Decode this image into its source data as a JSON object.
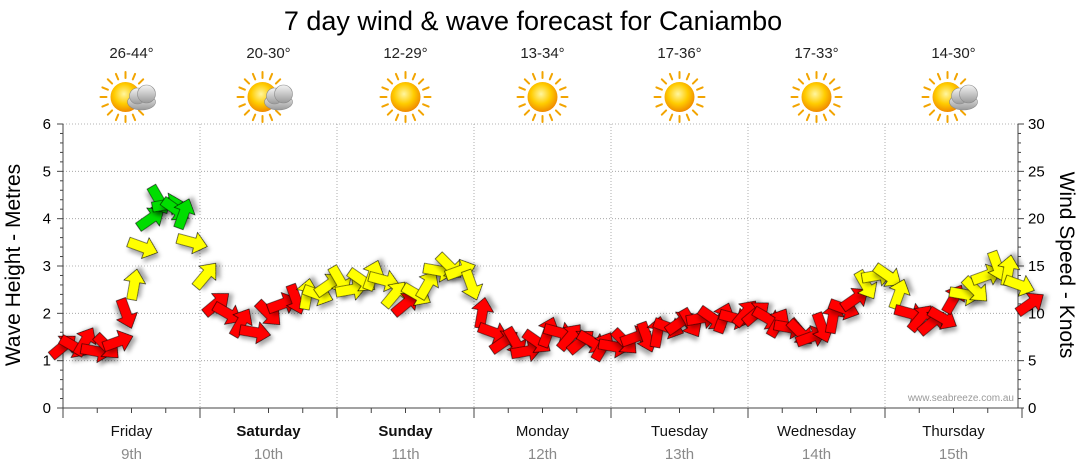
{
  "chart_data": {
    "type": "line",
    "title": "7 day wind & wave forecast for Caniambo",
    "ylabel_left": "Wave Height - Metres",
    "ylabel_right": "Wind Speed - Knots",
    "ylim_left": [
      0,
      6
    ],
    "ylim_right": [
      0,
      30
    ],
    "yticks_left": [
      "0",
      "1",
      "2",
      "3",
      "4",
      "5",
      "6"
    ],
    "yticks_right": [
      "0",
      "5",
      "10",
      "15",
      "20",
      "25",
      "30"
    ],
    "credit": "www.seabreeze.com.au",
    "days": [
      {
        "name": "Friday",
        "date": "9th",
        "temp": "26-44°",
        "icon": "partly-cloudy-icon",
        "bold": false
      },
      {
        "name": "Saturday",
        "date": "10th",
        "temp": "20-30°",
        "icon": "partly-cloudy-icon",
        "bold": true
      },
      {
        "name": "Sunday",
        "date": "11th",
        "temp": "12-29°",
        "icon": "sun-icon",
        "bold": true
      },
      {
        "name": "Monday",
        "date": "12th",
        "temp": "13-34°",
        "icon": "sun-icon",
        "bold": false
      },
      {
        "name": "Tuesday",
        "date": "13th",
        "temp": "17-36°",
        "icon": "sun-icon",
        "bold": false
      },
      {
        "name": "Wednesday",
        "date": "14th",
        "temp": "17-33°",
        "icon": "sun-icon",
        "bold": false
      },
      {
        "name": "Thursday",
        "date": "15th",
        "temp": "14-30°",
        "icon": "partly-cloudy-icon",
        "bold": false
      }
    ],
    "series": [
      {
        "name": "Wind Speed (knots)",
        "axis": "right",
        "t_days": [
          0.0,
          0.08,
          0.16,
          0.24,
          0.32,
          0.4,
          0.46,
          0.52,
          0.58,
          0.64,
          0.7,
          0.76,
          0.82,
          0.88,
          0.94,
          1.04,
          1.12,
          1.2,
          1.3,
          1.4,
          1.5,
          1.6,
          1.7,
          1.78,
          1.86,
          1.94,
          2.02,
          2.1,
          2.18,
          2.26,
          2.34,
          2.42,
          2.5,
          2.58,
          2.66,
          2.74,
          2.82,
          2.9,
          2.98,
          3.06,
          3.14,
          3.22,
          3.3,
          3.38,
          3.46,
          3.54,
          3.62,
          3.7,
          3.78,
          3.86,
          3.94,
          4.02,
          4.1,
          4.18,
          4.26,
          4.34,
          4.42,
          4.5,
          4.58,
          4.66,
          4.74,
          4.82,
          4.9,
          4.98,
          5.06,
          5.14,
          5.22,
          5.3,
          5.38,
          5.46,
          5.54,
          5.62,
          5.7,
          5.78,
          5.86,
          5.94,
          6.02,
          6.1,
          6.18,
          6.26,
          6.34,
          6.42,
          6.5,
          6.58,
          6.66,
          6.74,
          6.82,
          6.9,
          6.98,
          7.06
        ],
        "values": [
          6.5,
          6.5,
          7,
          6,
          6.5,
          7,
          10,
          13,
          17,
          20,
          22,
          21.5,
          21,
          20.5,
          17.5,
          14,
          11,
          10,
          9,
          8,
          10,
          11,
          11.5,
          12,
          12,
          13,
          13.5,
          12.5,
          13.5,
          14,
          13.5,
          12,
          11,
          12,
          13,
          14.5,
          15,
          14.5,
          13,
          10,
          8,
          7,
          7,
          6,
          7,
          8,
          8,
          7.5,
          7,
          7,
          6.5,
          6.5,
          7,
          7.5,
          7.5,
          8,
          8.5,
          9,
          9,
          9.5,
          9.5,
          9.5,
          9.5,
          10,
          10,
          9.5,
          9,
          8.5,
          8,
          7.5,
          8.5,
          9.5,
          10.5,
          11.5,
          13,
          14,
          14,
          12,
          10,
          9.5,
          9,
          9.5,
          11.5,
          12,
          12.5,
          14,
          15,
          14.5,
          13,
          11
        ],
        "color_bands": {
          "red": "< 12",
          "yellow": "12-20",
          "green": "> 20"
        }
      },
      {
        "name": "Wave Height (metres)",
        "axis": "left",
        "values": []
      }
    ],
    "colors": {
      "red": "#ff0000",
      "yellow": "#ffff00",
      "green": "#00dd00",
      "grid": "#9a9a9a",
      "axis": "#444444",
      "date": "#8a8a8a"
    }
  }
}
